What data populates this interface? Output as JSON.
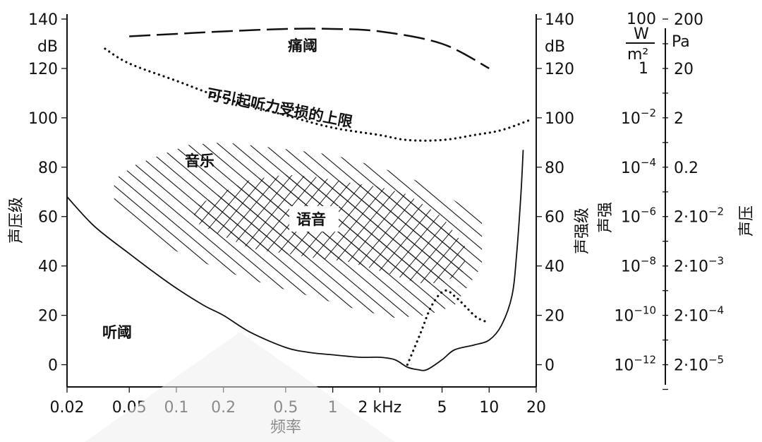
{
  "chart_data": {
    "type": "area",
    "xlabel": "频率",
    "ylabel_left": "声压级",
    "ylabel_right": "声强级",
    "x_scale": "log",
    "x_ticks": [
      {
        "value": 0.02,
        "label": "0.02"
      },
      {
        "value": 0.05,
        "label": "0.05"
      },
      {
        "value": 0.1,
        "label": "0.1"
      },
      {
        "value": 0.2,
        "label": "0.2"
      },
      {
        "value": 0.5,
        "label": "0.5"
      },
      {
        "value": 1,
        "label": "1"
      },
      {
        "value": 2,
        "label": "2 kHz"
      },
      {
        "value": 5,
        "label": "5"
      },
      {
        "value": 10,
        "label": "10"
      },
      {
        "value": 20,
        "label": "20"
      }
    ],
    "xlim": [
      0.02,
      20
    ],
    "ylim": [
      -9,
      142
    ],
    "y_ticks_left": [
      "140",
      "dB",
      "120",
      "100",
      "80",
      "60",
      "40",
      "20",
      "0"
    ],
    "y_ticks_right": [
      "140",
      "dB",
      "120",
      "100",
      "80",
      "60",
      "40",
      "20",
      "0"
    ],
    "intensity_axis": {
      "label": "声强",
      "ticks": [
        {
          "db": 140,
          "base": "100",
          "exp": ""
        },
        {
          "db": 100,
          "base": "10",
          "exp": "−2"
        },
        {
          "db": 80,
          "base": "10",
          "exp": "−4"
        },
        {
          "db": 60,
          "base": "10",
          "exp": "−6"
        },
        {
          "db": 40,
          "base": "10",
          "exp": "−8"
        },
        {
          "db": 20,
          "base": "10",
          "exp": "−10"
        },
        {
          "db": 0,
          "base": "10",
          "exp": "−12"
        }
      ],
      "one_label": "1",
      "unit_num": "W",
      "unit_den": "m²"
    },
    "pressure_axis": {
      "label": "声压",
      "ticks": [
        {
          "db": 140,
          "text": "200",
          "exp": ""
        },
        {
          "db": 120,
          "text": "20",
          "exp": ""
        },
        {
          "db": 100,
          "text": "2",
          "exp": ""
        },
        {
          "db": 80,
          "text": "0.2",
          "exp": ""
        },
        {
          "db": 60,
          "text": "2·10",
          "exp": "−2"
        },
        {
          "db": 40,
          "text": "2·10",
          "exp": "−3"
        },
        {
          "db": 20,
          "text": "2·10",
          "exp": "−4"
        },
        {
          "db": 0,
          "text": "2·10",
          "exp": "−5"
        }
      ],
      "unit": "Pa"
    },
    "regions": {
      "pain": "痛阈",
      "damage": "可引起听力受损的上限",
      "music": "音乐",
      "speech": "语音",
      "hearing": "听阈"
    },
    "series": [
      {
        "name": "痛阈",
        "style": "dashed",
        "x": [
          0.05,
          0.1,
          0.2,
          0.5,
          1,
          2,
          5,
          10
        ],
        "y": [
          133,
          134,
          135,
          136,
          136,
          135,
          130,
          120
        ]
      },
      {
        "name": "可引起听力受损的上限",
        "style": "dotted",
        "x": [
          0.035,
          0.05,
          0.1,
          0.2,
          0.5,
          1,
          2,
          3,
          5,
          8,
          12,
          18
        ],
        "y": [
          128,
          122,
          115,
          108,
          101,
          96,
          93,
          91,
          91,
          93,
          95,
          99
        ]
      },
      {
        "name": "听阈",
        "style": "solid",
        "x": [
          0.02,
          0.03,
          0.05,
          0.07,
          0.1,
          0.15,
          0.2,
          0.3,
          0.5,
          0.7,
          1,
          1.5,
          2,
          2.5,
          3,
          3.5,
          4,
          5,
          6,
          8,
          10,
          12,
          14,
          15,
          16,
          16.5
        ],
        "y": [
          68,
          56,
          45,
          38,
          31,
          24,
          20,
          13,
          7,
          5,
          4,
          3,
          3,
          2,
          -1,
          -2,
          -2,
          2,
          6,
          8,
          10,
          16,
          28,
          45,
          70,
          87
        ]
      },
      {
        "name": "dotted-hf",
        "style": "dotted",
        "x": [
          3.0,
          3.6,
          4.3,
          5.2,
          6.2,
          7.2,
          8.4,
          10
        ],
        "y": [
          0,
          12,
          24,
          30,
          27,
          23,
          19,
          17
        ]
      }
    ],
    "areas": [
      {
        "name": "音乐",
        "hatch": "single",
        "x": [
          0.04,
          0.055,
          0.08,
          0.12,
          0.2,
          0.4,
          1,
          2,
          4,
          7,
          9,
          9,
          6,
          4,
          2.5,
          1.5,
          0.8,
          0.4,
          0.2,
          0.1,
          0.06,
          0.04
        ],
        "y": [
          75,
          81,
          85,
          89,
          90,
          88,
          85,
          80,
          73,
          64,
          58,
          40,
          24,
          20,
          19,
          22,
          27,
          32,
          38,
          46,
          55,
          66
        ]
      },
      {
        "name": "语音",
        "hatch": "cross",
        "x": [
          0.13,
          0.2,
          0.3,
          0.5,
          0.8,
          1.2,
          2,
          3,
          5,
          7,
          7,
          5,
          3.5,
          2,
          1.2,
          0.8,
          0.5,
          0.3,
          0.2,
          0.13
        ],
        "y": [
          64,
          70,
          75,
          77,
          76,
          74,
          72,
          69,
          60,
          48,
          38,
          33,
          33,
          38,
          42,
          43,
          45,
          47,
          52,
          58
        ]
      }
    ]
  }
}
